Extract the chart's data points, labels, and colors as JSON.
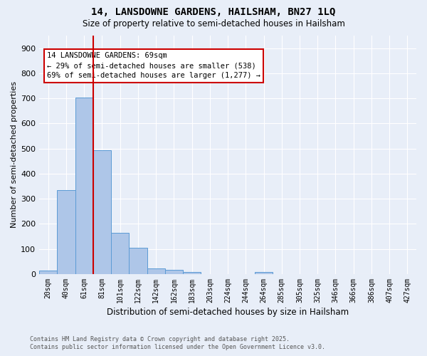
{
  "title1": "14, LANSDOWNE GARDENS, HAILSHAM, BN27 1LQ",
  "title2": "Size of property relative to semi-detached houses in Hailsham",
  "xlabel": "Distribution of semi-detached houses by size in Hailsham",
  "ylabel": "Number of semi-detached properties",
  "bin_labels": [
    "20sqm",
    "40sqm",
    "61sqm",
    "81sqm",
    "101sqm",
    "122sqm",
    "142sqm",
    "162sqm",
    "183sqm",
    "203sqm",
    "224sqm",
    "244sqm",
    "264sqm",
    "285sqm",
    "305sqm",
    "325sqm",
    "346sqm",
    "366sqm",
    "386sqm",
    "407sqm",
    "427sqm"
  ],
  "bar_heights": [
    15,
    335,
    703,
    493,
    165,
    105,
    23,
    17,
    7,
    0,
    0,
    0,
    8,
    0,
    0,
    0,
    0,
    0,
    0,
    0,
    0
  ],
  "bar_color": "#aec6e8",
  "bar_edge_color": "#5b9bd5",
  "bg_color": "#e8eef8",
  "grid_color": "#ffffff",
  "vline_color": "#cc0000",
  "vline_x_index": 2,
  "annotation_title": "14 LANSDOWNE GARDENS: 69sqm",
  "annotation_line2": "← 29% of semi-detached houses are smaller (538)",
  "annotation_line3": "69% of semi-detached houses are larger (1,277) →",
  "annotation_box_color": "#cc0000",
  "footnote1": "Contains HM Land Registry data © Crown copyright and database right 2025.",
  "footnote2": "Contains public sector information licensed under the Open Government Licence v3.0.",
  "ylim": [
    0,
    950
  ],
  "yticks": [
    0,
    100,
    200,
    300,
    400,
    500,
    600,
    700,
    800,
    900
  ]
}
